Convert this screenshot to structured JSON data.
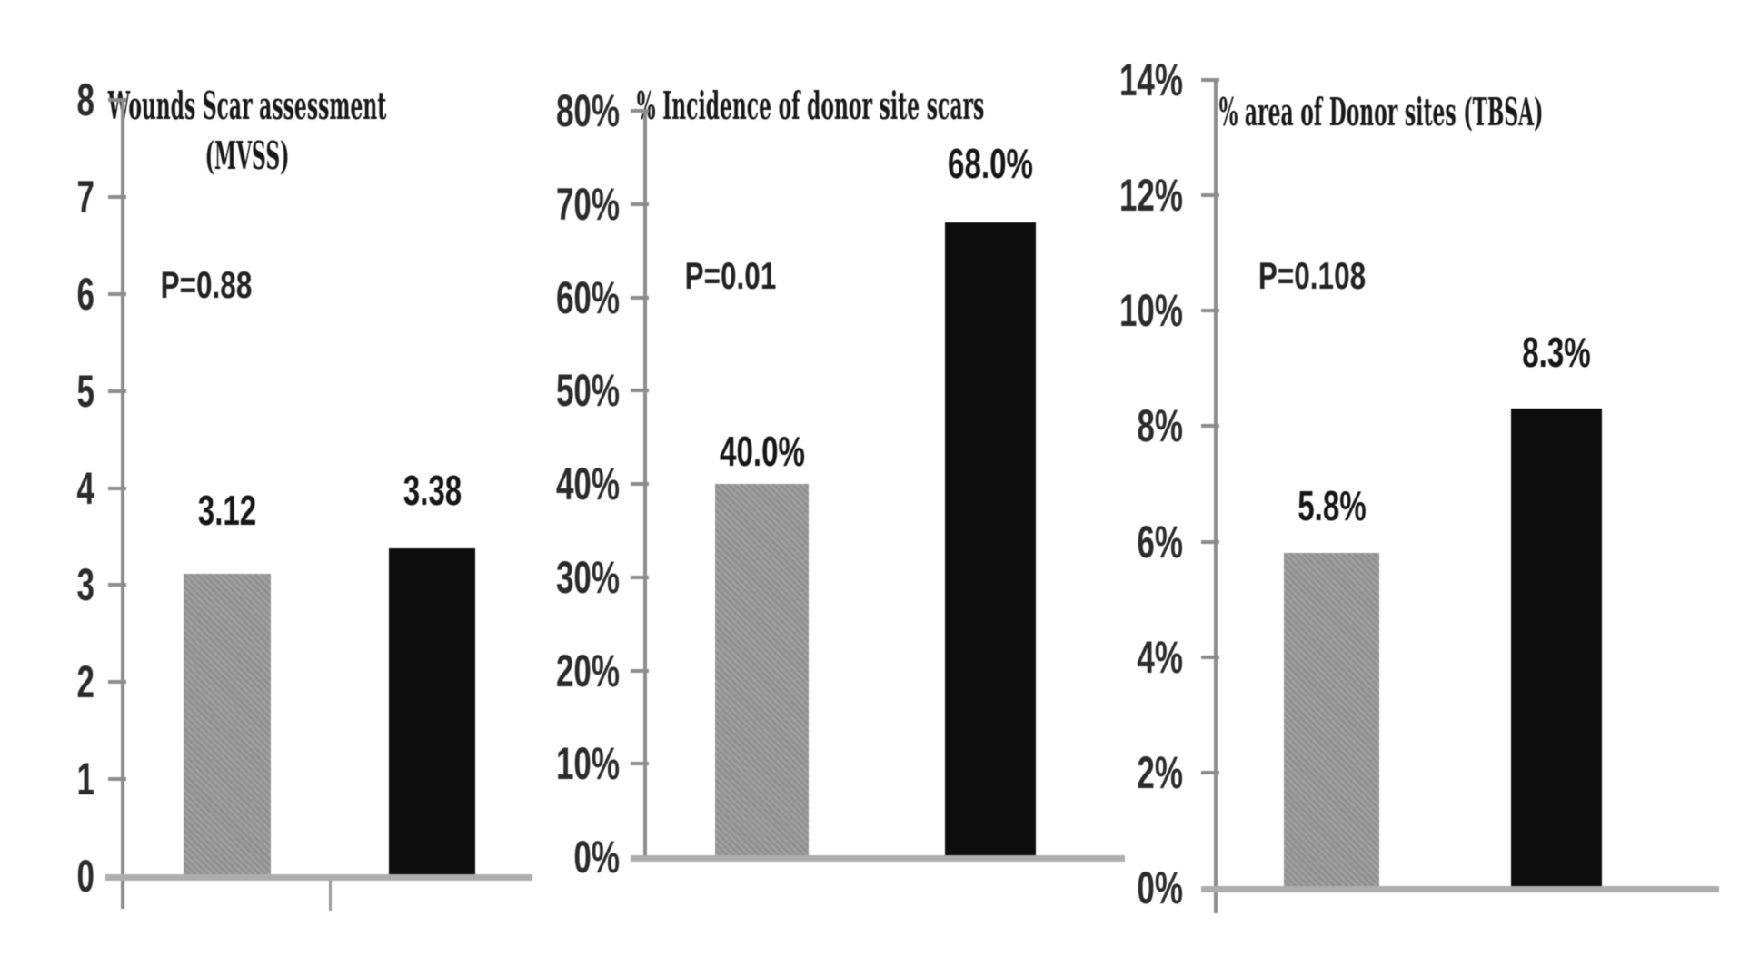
{
  "figure": {
    "background": "#ffffff"
  },
  "palette": {
    "bar_gray": "#999999",
    "bar_black": "#0d0d0d",
    "axis": "#8c8c8c",
    "baseline": "#adadad",
    "text": "#181818"
  },
  "chart_data": [
    {
      "type": "bar",
      "title": "Wounds Scar assessment\n(MVSS)",
      "p_label": "P=0.88",
      "ylim": [
        0,
        8
      ],
      "ytick_step": 1,
      "ytick_labels": [
        "0",
        "1",
        "2",
        "3",
        "4",
        "5",
        "6",
        "7",
        "8"
      ],
      "grid": false,
      "legend": null,
      "bars": [
        {
          "value": 3.12,
          "label": "3.12",
          "color_key": "bar_gray"
        },
        {
          "value": 3.38,
          "label": "3.38",
          "color_key": "bar_black"
        }
      ]
    },
    {
      "type": "bar",
      "title": "% Incidence of donor site scars",
      "p_label": "P=0.01",
      "ylim": [
        0,
        80
      ],
      "ytick_step": 10,
      "ytick_labels": [
        "0%",
        "10%",
        "20%",
        "30%",
        "40%",
        "50%",
        "60%",
        "70%",
        "80%"
      ],
      "grid": false,
      "legend": null,
      "bars": [
        {
          "value": 40.0,
          "label": "40.0%",
          "color_key": "bar_gray"
        },
        {
          "value": 68.0,
          "label": "68.0%",
          "color_key": "bar_black"
        }
      ]
    },
    {
      "type": "bar",
      "title": "% area of Donor sites (TBSA)",
      "p_label": "P=0.108",
      "ylim": [
        0,
        14
      ],
      "ytick_step": 2,
      "ytick_labels": [
        "0%",
        "2%",
        "4%",
        "6%",
        "8%",
        "10%",
        "12%",
        "14%"
      ],
      "grid": false,
      "legend": null,
      "bars": [
        {
          "value": 5.8,
          "label": "5.8%",
          "color_key": "bar_gray"
        },
        {
          "value": 8.3,
          "label": "8.3%",
          "color_key": "bar_black"
        }
      ]
    }
  ]
}
